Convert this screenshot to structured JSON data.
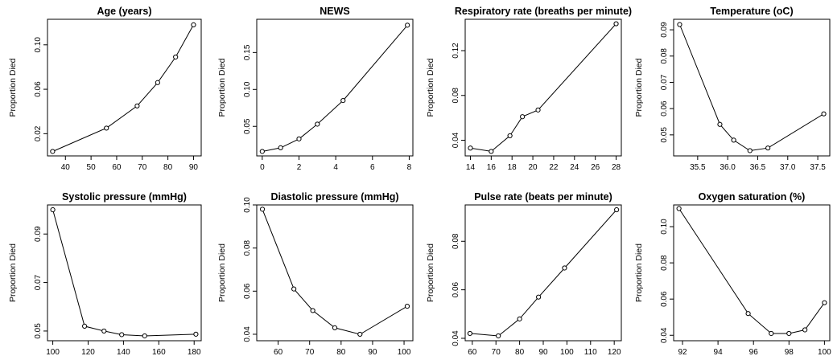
{
  "chart_data": [
    {
      "type": "line",
      "title": "Age (years)",
      "xlabel": "",
      "ylabel": "Proportion Died",
      "x": [
        35,
        56,
        68,
        76,
        83,
        90
      ],
      "y": [
        0.004,
        0.025,
        0.045,
        0.066,
        0.089,
        0.118
      ],
      "xlim": [
        33,
        93
      ],
      "ylim": [
        0.0,
        0.123
      ],
      "xticks": [
        40,
        50,
        60,
        70,
        80,
        90
      ],
      "yticks": [
        0.02,
        0.06,
        0.1
      ],
      "ytick_labels": [
        "0.02",
        "0.06",
        "0.10"
      ]
    },
    {
      "type": "line",
      "title": "NEWS",
      "xlabel": "",
      "ylabel": "Proportion Died",
      "x": [
        0,
        1,
        2,
        3,
        4.4,
        7.9
      ],
      "y": [
        0.016,
        0.021,
        0.033,
        0.053,
        0.085,
        0.187
      ],
      "xlim": [
        -0.3,
        8.2
      ],
      "ylim": [
        0.01,
        0.195
      ],
      "xticks": [
        0,
        2,
        4,
        6,
        8
      ],
      "yticks": [
        0.05,
        0.1,
        0.15
      ],
      "ytick_labels": [
        "0.05",
        "0.10",
        "0.15"
      ]
    },
    {
      "type": "line",
      "title": "Respiratory rate (breaths per minute)",
      "xlabel": "",
      "ylabel": "Proportion Died",
      "x": [
        14,
        16,
        17.8,
        19,
        20.5,
        28
      ],
      "y": [
        0.033,
        0.03,
        0.044,
        0.061,
        0.067,
        0.144
      ],
      "xlim": [
        13.5,
        28.5
      ],
      "ylim": [
        0.026,
        0.148
      ],
      "xticks": [
        14,
        16,
        18,
        20,
        22,
        24,
        26,
        28
      ],
      "yticks": [
        0.04,
        0.08,
        0.12
      ],
      "ytick_labels": [
        "0.04",
        "0.08",
        "0.12"
      ]
    },
    {
      "type": "line",
      "title": "Temperature (oC)",
      "xlabel": "",
      "ylabel": "Proportion Died",
      "x": [
        35.2,
        35.87,
        36.1,
        36.37,
        36.67,
        37.6
      ],
      "y": [
        0.092,
        0.054,
        0.048,
        0.044,
        0.045,
        0.058
      ],
      "xlim": [
        35.1,
        37.7
      ],
      "ylim": [
        0.042,
        0.094
      ],
      "xticks": [
        35.5,
        36.0,
        36.5,
        37.0,
        37.5
      ],
      "xtick_labels": [
        "35.5",
        "36.0",
        "36.5",
        "37.0",
        "37.5"
      ],
      "yticks": [
        0.05,
        0.06,
        0.07,
        0.08,
        0.09
      ],
      "ytick_labels": [
        "0.05",
        "0.06",
        "0.07",
        "0.08",
        "0.09"
      ]
    },
    {
      "type": "line",
      "title": "Systolic pressure (mmHg)",
      "xlabel": "",
      "ylabel": "Proportion Died",
      "x": [
        100,
        118,
        129,
        139,
        152,
        181
      ],
      "y": [
        0.1,
        0.052,
        0.05,
        0.0485,
        0.048,
        0.0487
      ],
      "xlim": [
        97,
        184
      ],
      "ylim": [
        0.046,
        0.102
      ],
      "xticks": [
        100,
        120,
        140,
        160,
        180
      ],
      "yticks": [
        0.05,
        0.07,
        0.09
      ],
      "ytick_labels": [
        "0.05",
        "0.07",
        "0.09"
      ]
    },
    {
      "type": "line",
      "title": "Diastolic pressure (mmHg)",
      "xlabel": "",
      "ylabel": "Proportion Died",
      "x": [
        55,
        65,
        71,
        78,
        86,
        101
      ],
      "y": [
        0.098,
        0.061,
        0.051,
        0.043,
        0.04,
        0.053
      ],
      "xlim": [
        53.2,
        102.8
      ],
      "ylim": [
        0.037,
        0.1
      ],
      "xticks": [
        60,
        70,
        80,
        90,
        100
      ],
      "yticks": [
        0.04,
        0.06,
        0.08,
        0.1
      ],
      "ytick_labels": [
        "0.04",
        "0.06",
        "0.08",
        "0.10"
      ]
    },
    {
      "type": "line",
      "title": "Pulse rate (beats per minute)",
      "xlabel": "",
      "ylabel": "Proportion Died",
      "x": [
        59,
        71,
        80,
        88,
        99,
        121
      ],
      "y": [
        0.042,
        0.041,
        0.048,
        0.057,
        0.069,
        0.093
      ],
      "xlim": [
        57,
        123
      ],
      "ylim": [
        0.039,
        0.095
      ],
      "xticks": [
        60,
        70,
        80,
        90,
        100,
        110,
        120
      ],
      "yticks": [
        0.04,
        0.06,
        0.08
      ],
      "ytick_labels": [
        "0.04",
        "0.06",
        "0.08"
      ]
    },
    {
      "type": "line",
      "title": "Oxygen saturation (%)",
      "xlabel": "",
      "ylabel": "Proportion Died",
      "x": [
        91.8,
        95.7,
        97,
        98,
        98.9,
        100
      ],
      "y": [
        0.11,
        0.052,
        0.041,
        0.041,
        0.043,
        0.058
      ],
      "xlim": [
        91.5,
        100.3
      ],
      "ylim": [
        0.037,
        0.112
      ],
      "xticks": [
        92,
        94,
        96,
        98,
        100
      ],
      "yticks": [
        0.04,
        0.06,
        0.08,
        0.1
      ],
      "ytick_labels": [
        "0.04",
        "0.06",
        "0.08",
        "0.10"
      ]
    }
  ]
}
